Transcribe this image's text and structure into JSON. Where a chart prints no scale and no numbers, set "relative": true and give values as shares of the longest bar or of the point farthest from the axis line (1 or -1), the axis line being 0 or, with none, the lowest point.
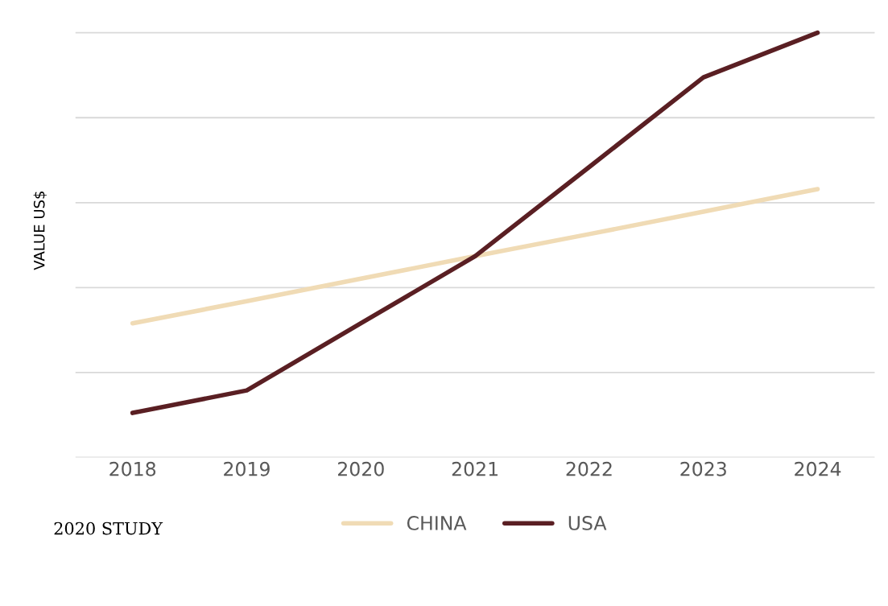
{
  "chart_data": {
    "type": "line",
    "ylabel": "VALUE US$",
    "relative": true,
    "categories": [
      "2018",
      "2019",
      "2020",
      "2021",
      "2022",
      "2023",
      "2024"
    ],
    "series": [
      {
        "name": "CHINA",
        "color": "#f0dbb5",
        "values": [
          0.316,
          0.368,
          0.421,
          0.474,
          0.526,
          0.579,
          0.632
        ]
      },
      {
        "name": "USA",
        "color": "#5a1f23",
        "values": [
          0.105,
          0.158,
          0.316,
          0.474,
          0.684,
          0.895,
          1
        ]
      }
    ],
    "grid": "y",
    "legend": "bottom",
    "tick_labels": "x",
    "marker": "none",
    "line_style": "solid",
    "annotations": [
      "2020 STUDY"
    ]
  }
}
